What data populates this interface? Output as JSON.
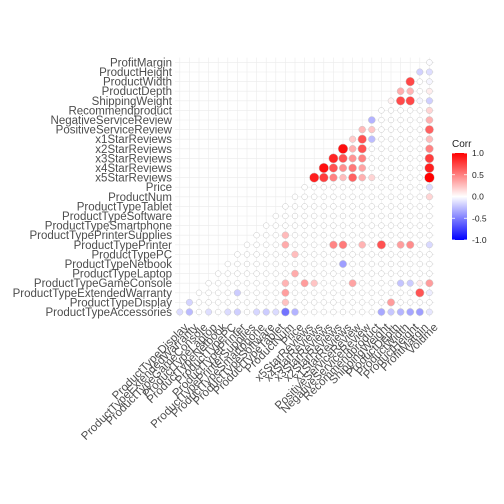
{
  "chart_data": {
    "type": "heatmap",
    "shape": "circle",
    "layout": "lower-triangle",
    "variables": [
      "ProductTypeAccessories",
      "ProductTypeDisplay",
      "ProductTypeExtendedWarranty",
      "ProductTypeGameConsole",
      "ProductTypeLaptop",
      "ProductTypeNetbook",
      "ProductTypePC",
      "ProductTypePrinter",
      "ProductTypePrinterSupplies",
      "ProductTypeSmartphone",
      "ProductTypeSoftware",
      "ProductTypeTablet",
      "ProductNum",
      "Price",
      "x5StarReviews",
      "x4StarReviews",
      "x3StarReviews",
      "x2StarReviews",
      "x1StarReviews",
      "PositiveServiceReview",
      "NegativeServiceReview",
      "Recommendproduct",
      "ShippingWeight",
      "ProductDepth",
      "ProductWidth",
      "ProductHeight",
      "ProfitMargin",
      "Volume"
    ],
    "x_labels": [
      "ProductTypeDisplay",
      "ProductTypeExtendedWarranty",
      "ProductTypeGameConsole",
      "ProductTypeLaptop",
      "ProductTypeNetbook",
      "ProductTypePC",
      "ProductTypePrinter",
      "ProductTypePrinterSupplies",
      "ProductTypeSmartphone",
      "ProductTypeSoftware",
      "ProductTypeTablet",
      "ProductNum",
      "Price",
      "x5StarReviews",
      "x4StarReviews",
      "x3StarReviews",
      "x2StarReviews",
      "x1StarReviews",
      "PositiveServiceReview",
      "NegativeServiceReview",
      "Recommendproduct",
      "ShippingWeight",
      "ProductDepth",
      "ProductWidth",
      "ProductHeight",
      "ProfitMargin",
      "Volume"
    ],
    "y_labels": [
      "ProductTypeAccessories",
      "ProductTypeDisplay",
      "ProductTypeExtendedWarranty",
      "ProductTypeGameConsole",
      "ProductTypeLaptop",
      "ProductTypeNetbook",
      "ProductTypePC",
      "ProductTypePrinter",
      "ProductTypePrinterSupplies",
      "ProductTypeSmartphone",
      "ProductTypeSoftware",
      "ProductTypeTablet",
      "ProductNum",
      "Price",
      "x5StarReviews",
      "x4StarReviews",
      "x3StarReviews",
      "x2StarReviews",
      "x1StarReviews",
      "PositiveServiceReview",
      "NegativeServiceReview",
      "Recommendproduct",
      "ShippingWeight",
      "ProductDepth",
      "ProductWidth",
      "ProductHeight",
      "ProfitMargin"
    ],
    "fill_range": [
      -1,
      1
    ],
    "grid": true,
    "legend": {
      "title": "Corr",
      "position": "right",
      "ticks": [
        1.0,
        0.5,
        0.0,
        -0.5,
        -1.0
      ],
      "tick_labels": [
        "1.0",
        "0.5",
        "0.0",
        "-0.5",
        "-1.0"
      ],
      "colors": {
        "high": "#ff0000",
        "mid": "#ffffff",
        "low": "#0000ff"
      }
    },
    "correlations": [
      {
        "x": "Volume",
        "y": "x5StarReviews",
        "v": 1.0
      },
      {
        "x": "Volume",
        "y": "x4StarReviews",
        "v": 0.88
      },
      {
        "x": "Volume",
        "y": "x3StarReviews",
        "v": 0.76
      },
      {
        "x": "Volume",
        "y": "x2StarReviews",
        "v": 0.49
      },
      {
        "x": "Volume",
        "y": "x1StarReviews",
        "v": 0.26
      },
      {
        "x": "Volume",
        "y": "PositiveServiceReview",
        "v": 0.62
      },
      {
        "x": "Volume",
        "y": "NegativeServiceReview",
        "v": 0.31
      },
      {
        "x": "Volume",
        "y": "Recommendproduct",
        "v": 0.17
      },
      {
        "x": "Volume",
        "y": "ProductTypeGameConsole",
        "v": 0.39
      },
      {
        "x": "Volume",
        "y": "ProductTypeAccessories",
        "v": -0.1
      },
      {
        "x": "Volume",
        "y": "ProductTypeExtendedWarranty",
        "v": -0.07
      },
      {
        "x": "Volume",
        "y": "ProductTypePrinter",
        "v": -0.15
      },
      {
        "x": "Volume",
        "y": "ProductDepth",
        "v": 0.07
      },
      {
        "x": "Volume",
        "y": "ShippingWeight",
        "v": -0.19
      },
      {
        "x": "Volume",
        "y": "ProductWidth",
        "v": -0.04
      },
      {
        "x": "Volume",
        "y": "ProductHeight",
        "v": -0.13
      },
      {
        "x": "Volume",
        "y": "ProfitMargin",
        "v": -0.01
      },
      {
        "x": "Volume",
        "y": "Price",
        "v": -0.14
      },
      {
        "x": "Volume",
        "y": "ProductNum",
        "v": 0.17
      },
      {
        "x": "x4StarReviews",
        "y": "x5StarReviews",
        "v": 0.88
      },
      {
        "x": "x3StarReviews",
        "y": "x5StarReviews",
        "v": 0.76
      },
      {
        "x": "x3StarReviews",
        "y": "x4StarReviews",
        "v": 0.94
      },
      {
        "x": "x2StarReviews",
        "y": "x5StarReviews",
        "v": 0.49
      },
      {
        "x": "x2StarReviews",
        "y": "x4StarReviews",
        "v": 0.68
      },
      {
        "x": "x2StarReviews",
        "y": "x3StarReviews",
        "v": 0.86
      },
      {
        "x": "x1StarReviews",
        "y": "x5StarReviews",
        "v": 0.26
      },
      {
        "x": "x1StarReviews",
        "y": "x4StarReviews",
        "v": 0.44
      },
      {
        "x": "x1StarReviews",
        "y": "x3StarReviews",
        "v": 0.68
      },
      {
        "x": "x1StarReviews",
        "y": "x2StarReviews",
        "v": 0.95
      },
      {
        "x": "PositiveServiceReview",
        "y": "x5StarReviews",
        "v": 0.62
      },
      {
        "x": "PositiveServiceReview",
        "y": "x4StarReviews",
        "v": 0.53
      },
      {
        "x": "PositiveServiceReview",
        "y": "x3StarReviews",
        "v": 0.42
      },
      {
        "x": "PositiveServiceReview",
        "y": "x2StarReviews",
        "v": 0.31
      },
      {
        "x": "PositiveServiceReview",
        "y": "x1StarReviews",
        "v": 0.2
      },
      {
        "x": "NegativeServiceReview",
        "y": "x5StarReviews",
        "v": 0.31
      },
      {
        "x": "NegativeServiceReview",
        "y": "x4StarReviews",
        "v": 0.36
      },
      {
        "x": "NegativeServiceReview",
        "y": "x3StarReviews",
        "v": 0.49
      },
      {
        "x": "NegativeServiceReview",
        "y": "x2StarReviews",
        "v": 0.68
      },
      {
        "x": "NegativeServiceReview",
        "y": "x1StarReviews",
        "v": 0.68
      },
      {
        "x": "NegativeServiceReview",
        "y": "PositiveServiceReview",
        "v": 0.27
      },
      {
        "x": "Recommendproduct",
        "y": "NegativeServiceReview",
        "v": -0.3
      },
      {
        "x": "Recommendproduct",
        "y": "x1StarReviews",
        "v": -0.26
      },
      {
        "x": "Recommendproduct",
        "y": "x5StarReviews",
        "v": 0.17
      },
      {
        "x": "Recommendproduct",
        "y": "PositiveServiceReview",
        "v": 0.22
      },
      {
        "x": "ProfitMargin",
        "y": "ProductHeight",
        "v": -0.18
      },
      {
        "x": "ProfitMargin",
        "y": "ShippingWeight",
        "v": -0.04
      },
      {
        "x": "ProductHeight",
        "y": "ProductWidth",
        "v": 0.72
      },
      {
        "x": "ProductHeight",
        "y": "ProductDepth",
        "v": 0.29
      },
      {
        "x": "ProductHeight",
        "y": "ShippingWeight",
        "v": 0.72
      },
      {
        "x": "ProductWidth",
        "y": "ProductDepth",
        "v": 0.32
      },
      {
        "x": "ProductWidth",
        "y": "ShippingWeight",
        "v": 0.71
      },
      {
        "x": "ProductDepth",
        "y": "ShippingWeight",
        "v": 0.05
      },
      {
        "x": "Price",
        "y": "ProductTypeLaptop",
        "v": 0.33
      },
      {
        "x": "Price",
        "y": "ProductTypePC",
        "v": 0.26
      },
      {
        "x": "Price",
        "y": "ProductTypeAccessories",
        "v": -0.3
      },
      {
        "x": "ShippingWeight",
        "y": "ProductTypePrinter",
        "v": 0.68
      },
      {
        "x": "ProductHeight",
        "y": "ProductTypePrinter",
        "v": 0.45
      },
      {
        "x": "ProductWidth",
        "y": "ProductTypePrinter",
        "v": 0.38
      },
      {
        "x": "ProductHeight",
        "y": "ProductTypeGameConsole",
        "v": -0.2
      },
      {
        "x": "ProductWidth",
        "y": "ProductTypeGameConsole",
        "v": -0.23
      },
      {
        "x": "ProductHeight",
        "y": "ProductTypeAccessories",
        "v": -0.35
      },
      {
        "x": "ProductWidth",
        "y": "ProductTypeAccessories",
        "v": -0.29
      },
      {
        "x": "ProductDepth",
        "y": "ProductTypeAccessories",
        "v": -0.22
      },
      {
        "x": "ShippingWeight",
        "y": "ProductTypeAccessories",
        "v": -0.34
      },
      {
        "x": "ProfitMargin",
        "y": "ProductTypeAccessories",
        "v": -0.38
      },
      {
        "x": "ProfitMargin",
        "y": "ProductTypeExtendedWarranty",
        "v": 0.67
      },
      {
        "x": "ProfitMargin",
        "y": "ProductTypeGameConsole",
        "v": 0.07
      },
      {
        "x": "ProductDepth",
        "y": "ProductTypeDisplay",
        "v": 0.39
      },
      {
        "x": "x5StarReviews",
        "y": "ProductTypeGameConsole",
        "v": 0.39
      },
      {
        "x": "x4StarReviews",
        "y": "ProductTypeGameConsole",
        "v": 0.23
      },
      {
        "x": "PositiveServiceReview",
        "y": "ProductTypeGameConsole",
        "v": 0.36
      },
      {
        "x": "x1StarReviews",
        "y": "ProductTypePrinter",
        "v": 0.52
      },
      {
        "x": "x2StarReviews",
        "y": "ProductTypePrinter",
        "v": 0.48
      },
      {
        "x": "NegativeServiceReview",
        "y": "ProductTypePrinter",
        "v": 0.3
      },
      {
        "x": "x1StarReviews",
        "y": "ProductTypeNetbook",
        "v": -0.38
      },
      {
        "x": "ProductNum",
        "y": "ProductTypeAccessories",
        "v": -0.55
      },
      {
        "x": "ProductNum",
        "y": "ProductTypeExtendedWarranty",
        "v": 0.38
      },
      {
        "x": "ProductNum",
        "y": "ProductTypeDisplay",
        "v": 0.24
      },
      {
        "x": "ProductNum",
        "y": "ProductTypeGameConsole",
        "v": 0.3
      },
      {
        "x": "ProductNum",
        "y": "ProductTypePrinter",
        "v": 0.33
      },
      {
        "x": "ProductNum",
        "y": "ProductTypePrinterSupplies",
        "v": 0.27
      },
      {
        "x": "ProductTypeExtendedWarranty",
        "y": "ProductTypeAccessories",
        "v": -0.27
      },
      {
        "x": "ProductTypeDisplay",
        "y": "ProductTypeAccessories",
        "v": -0.14
      },
      {
        "x": "ProductTypeSoftware",
        "y": "ProductTypeAccessories",
        "v": -0.2
      },
      {
        "x": "ProductTypePrinter",
        "y": "ProductTypeAccessories",
        "v": -0.19
      },
      {
        "x": "ProductTypeTablet",
        "y": "ProductTypeAccessories",
        "v": -0.14
      },
      {
        "x": "ProductTypePC",
        "y": "ProductTypeAccessories",
        "v": -0.14
      },
      {
        "x": "ProductTypeLaptop",
        "y": "ProductTypeAccessories",
        "v": -0.13
      },
      {
        "x": "ProductTypeSmartphone",
        "y": "ProductTypeAccessories",
        "v": -0.16
      },
      {
        "x": "ProductTypeExtendedWarranty",
        "y": "ProductTypeDisplay",
        "v": -0.17
      },
      {
        "x": "ProductTypeExtendedWarranty",
        "y": "ProductTypePrinter",
        "v": -0.2
      }
    ]
  }
}
